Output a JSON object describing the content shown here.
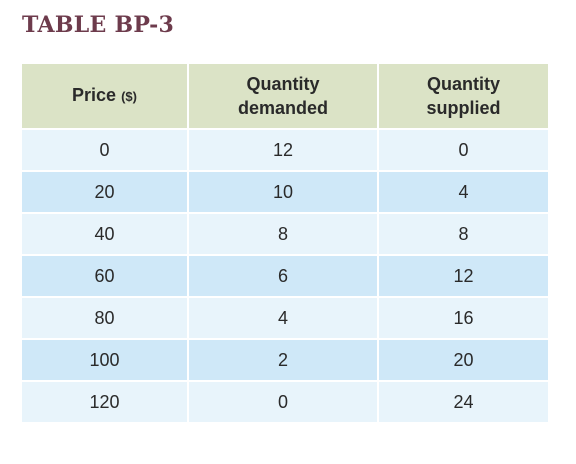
{
  "title": "TABLE BP-3",
  "headers": {
    "price_main": "Price",
    "price_unit": "($)",
    "demanded_line1": "Quantity",
    "demanded_line2": "demanded",
    "supplied_line1": "Quantity",
    "supplied_line2": "supplied"
  },
  "rows": [
    {
      "price": "0",
      "demanded": "12",
      "supplied": "0"
    },
    {
      "price": "20",
      "demanded": "10",
      "supplied": "4"
    },
    {
      "price": "40",
      "demanded": "8",
      "supplied": "8"
    },
    {
      "price": "60",
      "demanded": "6",
      "supplied": "12"
    },
    {
      "price": "80",
      "demanded": "4",
      "supplied": "16"
    },
    {
      "price": "100",
      "demanded": "2",
      "supplied": "20"
    },
    {
      "price": "120",
      "demanded": "0",
      "supplied": "24"
    }
  ],
  "colors": {
    "title": "#6d3b4c",
    "header_bg": "#dbe3c6",
    "row_light": "#e8f4fb",
    "row_dark": "#cfe8f8"
  }
}
